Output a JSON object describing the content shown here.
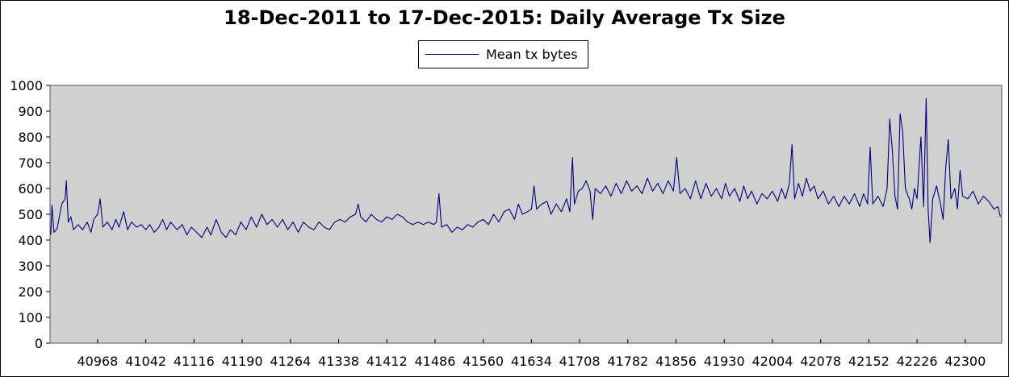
{
  "chart_data": {
    "type": "line",
    "title": "18-Dec-2011 to 17-Dec-2015: Daily Average Tx Size",
    "xlabel": "",
    "ylabel": "",
    "xlim": [
      40895,
      42356
    ],
    "ylim": [
      0,
      1000
    ],
    "x_ticks": [
      40968,
      41042,
      41116,
      41190,
      41264,
      41338,
      41412,
      41486,
      41560,
      41634,
      41708,
      41782,
      41856,
      41930,
      42004,
      42078,
      42152,
      42226,
      42300
    ],
    "y_ticks": [
      0,
      100,
      200,
      300,
      400,
      500,
      600,
      700,
      800,
      900,
      1000
    ],
    "grid": false,
    "legend_position": "top-center",
    "plot_background": "#d0d0d0",
    "series": [
      {
        "name": "Mean tx bytes",
        "color": "#00007f",
        "points": [
          [
            40896,
            420
          ],
          [
            40898,
            535
          ],
          [
            40901,
            430
          ],
          [
            40906,
            445
          ],
          [
            40910,
            500
          ],
          [
            40913,
            540
          ],
          [
            40918,
            560
          ],
          [
            40920,
            630
          ],
          [
            40923,
            470
          ],
          [
            40927,
            490
          ],
          [
            40931,
            440
          ],
          [
            40938,
            460
          ],
          [
            40945,
            440
          ],
          [
            40952,
            470
          ],
          [
            40958,
            430
          ],
          [
            40962,
            480
          ],
          [
            40968,
            500
          ],
          [
            40972,
            560
          ],
          [
            40976,
            450
          ],
          [
            40983,
            470
          ],
          [
            40990,
            440
          ],
          [
            40996,
            480
          ],
          [
            41001,
            450
          ],
          [
            41008,
            510
          ],
          [
            41014,
            440
          ],
          [
            41020,
            470
          ],
          [
            41028,
            450
          ],
          [
            41035,
            460
          ],
          [
            41042,
            440
          ],
          [
            41048,
            460
          ],
          [
            41055,
            430
          ],
          [
            41062,
            450
          ],
          [
            41068,
            480
          ],
          [
            41074,
            440
          ],
          [
            41080,
            470
          ],
          [
            41090,
            440
          ],
          [
            41098,
            460
          ],
          [
            41105,
            420
          ],
          [
            41112,
            450
          ],
          [
            41120,
            430
          ],
          [
            41128,
            410
          ],
          [
            41136,
            450
          ],
          [
            41142,
            420
          ],
          [
            41150,
            480
          ],
          [
            41158,
            430
          ],
          [
            41165,
            410
          ],
          [
            41172,
            440
          ],
          [
            41180,
            420
          ],
          [
            41188,
            470
          ],
          [
            41196,
            440
          ],
          [
            41204,
            490
          ],
          [
            41212,
            450
          ],
          [
            41220,
            500
          ],
          [
            41228,
            460
          ],
          [
            41236,
            480
          ],
          [
            41244,
            450
          ],
          [
            41252,
            480
          ],
          [
            41260,
            440
          ],
          [
            41268,
            470
          ],
          [
            41276,
            430
          ],
          [
            41284,
            470
          ],
          [
            41292,
            450
          ],
          [
            41300,
            440
          ],
          [
            41308,
            470
          ],
          [
            41316,
            450
          ],
          [
            41324,
            440
          ],
          [
            41332,
            470
          ],
          [
            41340,
            480
          ],
          [
            41348,
            470
          ],
          [
            41356,
            490
          ],
          [
            41364,
            500
          ],
          [
            41368,
            540
          ],
          [
            41372,
            490
          ],
          [
            41380,
            470
          ],
          [
            41388,
            500
          ],
          [
            41396,
            480
          ],
          [
            41404,
            470
          ],
          [
            41412,
            490
          ],
          [
            41420,
            480
          ],
          [
            41428,
            500
          ],
          [
            41436,
            490
          ],
          [
            41444,
            470
          ],
          [
            41452,
            460
          ],
          [
            41460,
            470
          ],
          [
            41468,
            460
          ],
          [
            41476,
            470
          ],
          [
            41484,
            460
          ],
          [
            41488,
            470
          ],
          [
            41492,
            580
          ],
          [
            41496,
            450
          ],
          [
            41504,
            460
          ],
          [
            41512,
            430
          ],
          [
            41520,
            450
          ],
          [
            41528,
            440
          ],
          [
            41536,
            460
          ],
          [
            41544,
            450
          ],
          [
            41552,
            470
          ],
          [
            41560,
            480
          ],
          [
            41568,
            460
          ],
          [
            41576,
            500
          ],
          [
            41584,
            470
          ],
          [
            41592,
            510
          ],
          [
            41600,
            520
          ],
          [
            41608,
            480
          ],
          [
            41614,
            540
          ],
          [
            41620,
            500
          ],
          [
            41628,
            510
          ],
          [
            41634,
            520
          ],
          [
            41638,
            610
          ],
          [
            41642,
            520
          ],
          [
            41650,
            540
          ],
          [
            41658,
            550
          ],
          [
            41664,
            500
          ],
          [
            41672,
            540
          ],
          [
            41680,
            510
          ],
          [
            41688,
            560
          ],
          [
            41693,
            510
          ],
          [
            41697,
            720
          ],
          [
            41700,
            540
          ],
          [
            41706,
            590
          ],
          [
            41712,
            600
          ],
          [
            41718,
            630
          ],
          [
            41724,
            590
          ],
          [
            41728,
            480
          ],
          [
            41732,
            600
          ],
          [
            41740,
            580
          ],
          [
            41748,
            610
          ],
          [
            41756,
            570
          ],
          [
            41764,
            620
          ],
          [
            41772,
            580
          ],
          [
            41780,
            630
          ],
          [
            41788,
            590
          ],
          [
            41796,
            610
          ],
          [
            41804,
            580
          ],
          [
            41812,
            640
          ],
          [
            41820,
            590
          ],
          [
            41828,
            620
          ],
          [
            41836,
            580
          ],
          [
            41844,
            630
          ],
          [
            41852,
            590
          ],
          [
            41857,
            720
          ],
          [
            41862,
            580
          ],
          [
            41870,
            600
          ],
          [
            41878,
            560
          ],
          [
            41886,
            630
          ],
          [
            41894,
            560
          ],
          [
            41902,
            620
          ],
          [
            41910,
            570
          ],
          [
            41918,
            600
          ],
          [
            41926,
            560
          ],
          [
            41932,
            620
          ],
          [
            41938,
            570
          ],
          [
            41946,
            600
          ],
          [
            41954,
            550
          ],
          [
            41960,
            610
          ],
          [
            41966,
            560
          ],
          [
            41972,
            590
          ],
          [
            41980,
            540
          ],
          [
            41988,
            580
          ],
          [
            41996,
            560
          ],
          [
            42004,
            590
          ],
          [
            42012,
            550
          ],
          [
            42018,
            600
          ],
          [
            42024,
            560
          ],
          [
            42030,
            620
          ],
          [
            42034,
            770
          ],
          [
            42038,
            560
          ],
          [
            42044,
            620
          ],
          [
            42050,
            570
          ],
          [
            42056,
            640
          ],
          [
            42062,
            590
          ],
          [
            42068,
            610
          ],
          [
            42074,
            560
          ],
          [
            42082,
            590
          ],
          [
            42090,
            540
          ],
          [
            42098,
            570
          ],
          [
            42106,
            530
          ],
          [
            42114,
            570
          ],
          [
            42122,
            540
          ],
          [
            42130,
            580
          ],
          [
            42138,
            530
          ],
          [
            42144,
            580
          ],
          [
            42150,
            540
          ],
          [
            42154,
            760
          ],
          [
            42158,
            540
          ],
          [
            42166,
            570
          ],
          [
            42174,
            530
          ],
          [
            42180,
            600
          ],
          [
            42184,
            870
          ],
          [
            42188,
            750
          ],
          [
            42192,
            570
          ],
          [
            42196,
            520
          ],
          [
            42200,
            890
          ],
          [
            42204,
            820
          ],
          [
            42208,
            600
          ],
          [
            42214,
            560
          ],
          [
            42218,
            520
          ],
          [
            42222,
            600
          ],
          [
            42226,
            560
          ],
          [
            42232,
            800
          ],
          [
            42236,
            530
          ],
          [
            42240,
            950
          ],
          [
            42243,
            520
          ],
          [
            42246,
            390
          ],
          [
            42250,
            560
          ],
          [
            42256,
            610
          ],
          [
            42262,
            540
          ],
          [
            42266,
            480
          ],
          [
            42270,
            680
          ],
          [
            42274,
            790
          ],
          [
            42278,
            560
          ],
          [
            42284,
            600
          ],
          [
            42288,
            520
          ],
          [
            42292,
            670
          ],
          [
            42296,
            570
          ],
          [
            42304,
            560
          ],
          [
            42312,
            590
          ],
          [
            42320,
            540
          ],
          [
            42328,
            570
          ],
          [
            42336,
            550
          ],
          [
            42344,
            520
          ],
          [
            42350,
            530
          ],
          [
            42354,
            490
          ]
        ]
      }
    ]
  }
}
